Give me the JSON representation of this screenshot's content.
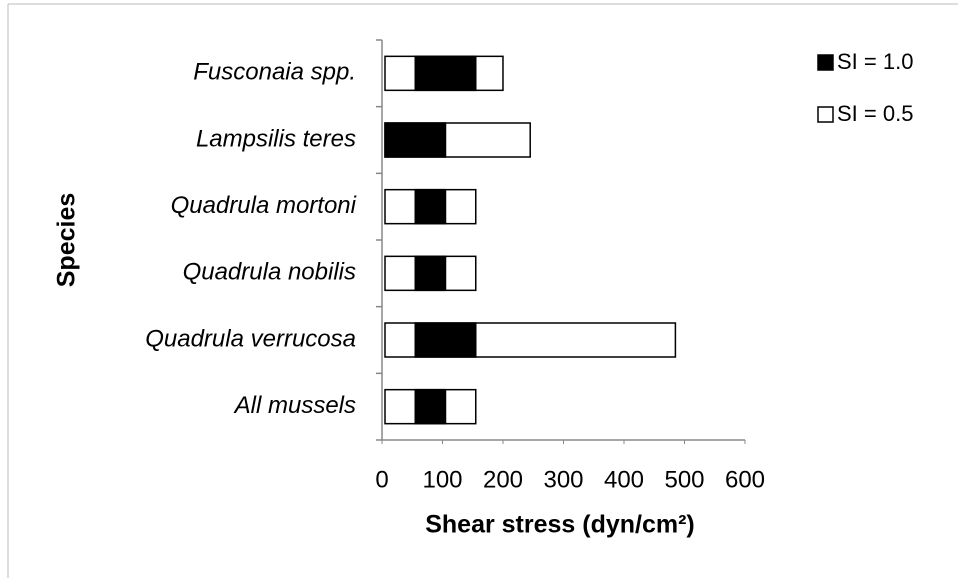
{
  "chart_data": {
    "type": "floating-bar",
    "x_label": "Shear stress (dyn/cm²)",
    "y_label": "Species",
    "categories": [
      "Fusconaia spp.",
      "Lampsilis teres",
      "Quadrula mortoni",
      "Quadrula nobilis",
      "Quadrula verrucosa",
      "All mussels"
    ],
    "series": [
      {
        "name": "SI = 0.5",
        "color": "#ffffff",
        "start": [
          0,
          0,
          0,
          0,
          0,
          0
        ],
        "end": [
          195,
          240,
          150,
          150,
          480,
          150
        ]
      },
      {
        "name": "SI = 1.0",
        "color": "#000000",
        "start": [
          50,
          0,
          50,
          50,
          50,
          50
        ],
        "end": [
          150,
          100,
          100,
          100,
          150,
          100
        ]
      }
    ],
    "legend_order": [
      1,
      0
    ],
    "xlim": [
      0,
      600
    ],
    "xticks": [
      0,
      100,
      200,
      300,
      400,
      500,
      600
    ],
    "legend": "upper right"
  }
}
